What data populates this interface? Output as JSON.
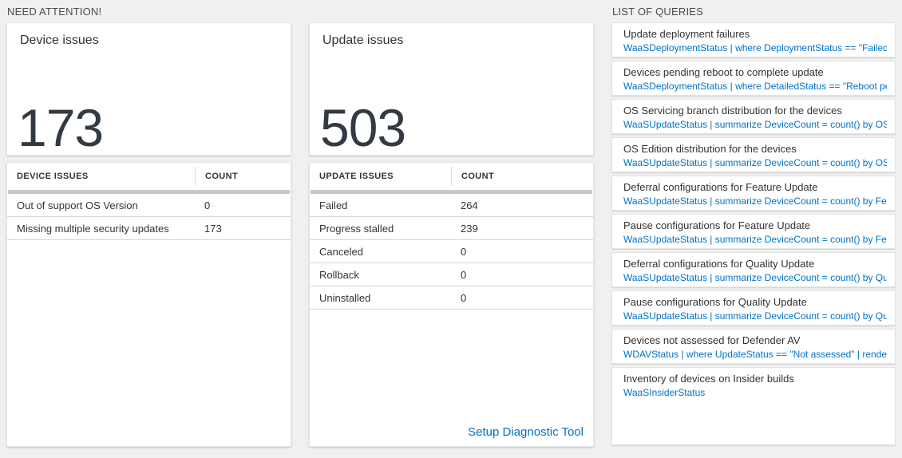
{
  "page": {
    "accent_blue": "#0072c6",
    "number_color": "#333a42",
    "background": "#f0f0f0"
  },
  "need_attention": {
    "section_title": "NEED ATTENTION!",
    "cards": [
      {
        "title": "Device issues",
        "count": "173",
        "table": {
          "headers": [
            "DEVICE ISSUES",
            "COUNT"
          ],
          "rows": [
            [
              "Out of support OS Version",
              "0"
            ],
            [
              "Missing multiple security updates",
              "173"
            ]
          ]
        }
      },
      {
        "title": "Update issues",
        "count": "503",
        "table": {
          "headers": [
            "UPDATE ISSUES",
            "COUNT"
          ],
          "rows": [
            [
              "Failed",
              "264"
            ],
            [
              "Progress stalled",
              "239"
            ],
            [
              "Canceled",
              "0"
            ],
            [
              "Rollback",
              "0"
            ],
            [
              "Uninstalled",
              "0"
            ]
          ]
        },
        "link": "Setup Diagnostic Tool"
      }
    ]
  },
  "queries": {
    "section_title": "LIST OF QUERIES",
    "items": [
      {
        "title": "Update deployment failures",
        "query": "WaaSDeploymentStatus | where DeploymentStatus == \"Failed\" |..."
      },
      {
        "title": "Devices pending reboot to complete update",
        "query": "WaaSDeploymentStatus | where DetailedStatus == \"Reboot pend..."
      },
      {
        "title": "OS Servicing branch distribution for the devices",
        "query": "WaaSUpdateStatus | summarize DeviceCount = count() by OSSer..."
      },
      {
        "title": "OS Edition distribution for the devices",
        "query": "WaaSUpdateStatus | summarize DeviceCount = count() by OSEdit..."
      },
      {
        "title": "Deferral configurations for Feature Update",
        "query": "WaaSUpdateStatus | summarize DeviceCount = count() by Featur..."
      },
      {
        "title": "Pause configurations for Feature Update",
        "query": "WaaSUpdateStatus | summarize DeviceCount = count() by Featur..."
      },
      {
        "title": "Deferral configurations for Quality Update",
        "query": "WaaSUpdateStatus | summarize DeviceCount = count() by Qualit..."
      },
      {
        "title": "Pause configurations for Quality Update",
        "query": "WaaSUpdateStatus | summarize DeviceCount = count() by Qualit..."
      },
      {
        "title": "Devices not assessed for Defender AV",
        "query": "WDAVStatus | where UpdateStatus == \"Not assessed\" | render ta..."
      },
      {
        "title": "Inventory of devices on Insider builds",
        "query": "WaaSInsiderStatus"
      }
    ]
  }
}
